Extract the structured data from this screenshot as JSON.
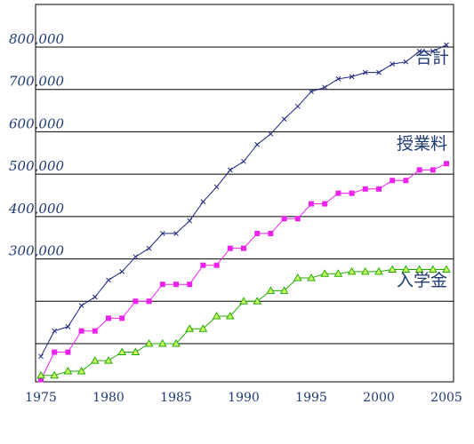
{
  "chart_data": {
    "type": "line",
    "title": "",
    "xlabel": "",
    "ylabel": "",
    "xlim": [
      1975,
      2006
    ],
    "ylim": [
      0,
      900000
    ],
    "grid": true,
    "y_ticks": [
      300000,
      400000,
      500000,
      600000,
      700000,
      800000
    ],
    "y_tick_labels": [
      "300,000",
      "400,000",
      "500,000",
      "600,000",
      "700,000",
      "800,000"
    ],
    "y_gridlines": [
      100000,
      200000,
      300000,
      400000,
      500000,
      600000,
      700000,
      800000
    ],
    "x_ticks": [
      1975,
      1980,
      1985,
      1990,
      1995,
      2000,
      2005
    ],
    "x_tick_labels": [
      "1975",
      "1980",
      "1985",
      "1990",
      "1995",
      "2000",
      "2005"
    ],
    "x": [
      1975,
      1976,
      1977,
      1978,
      1979,
      1980,
      1981,
      1982,
      1983,
      1984,
      1985,
      1986,
      1987,
      1988,
      1989,
      1990,
      1991,
      1992,
      1993,
      1994,
      1995,
      1996,
      1997,
      1998,
      1999,
      2000,
      2001,
      2002,
      2003,
      2004,
      2005
    ],
    "series": [
      {
        "name": "合計",
        "color": "#1a237e",
        "marker": "x",
        "values": [
          70000,
          130000,
          140000,
          190000,
          210000,
          250000,
          270000,
          305000,
          325000,
          360000,
          360000,
          390000,
          435000,
          470000,
          510000,
          530000,
          570000,
          595000,
          630000,
          660000,
          695000,
          705000,
          725000,
          730000,
          740000,
          740000,
          760000,
          765000,
          790000,
          790000,
          805000
        ]
      },
      {
        "name": "授業料",
        "color": "#ee22ee",
        "marker": "square",
        "values": [
          15000,
          80000,
          80000,
          130000,
          130000,
          160000,
          160000,
          200000,
          200000,
          240000,
          240000,
          240000,
          285000,
          285000,
          325000,
          325000,
          360000,
          360000,
          395000,
          395000,
          430000,
          430000,
          455000,
          455000,
          465000,
          465000,
          485000,
          485000,
          510000,
          510000,
          525000
        ]
      },
      {
        "name": "入学金",
        "color": "#22aa00",
        "marker": "triangle",
        "values": [
          25000,
          25000,
          35000,
          35000,
          60000,
          60000,
          80000,
          80000,
          100000,
          100000,
          100000,
          135000,
          135000,
          165000,
          165000,
          200000,
          200000,
          225000,
          225000,
          255000,
          255000,
          265000,
          265000,
          270000,
          270000,
          270000,
          275000,
          275000,
          275000,
          275000,
          275000
        ]
      }
    ]
  }
}
